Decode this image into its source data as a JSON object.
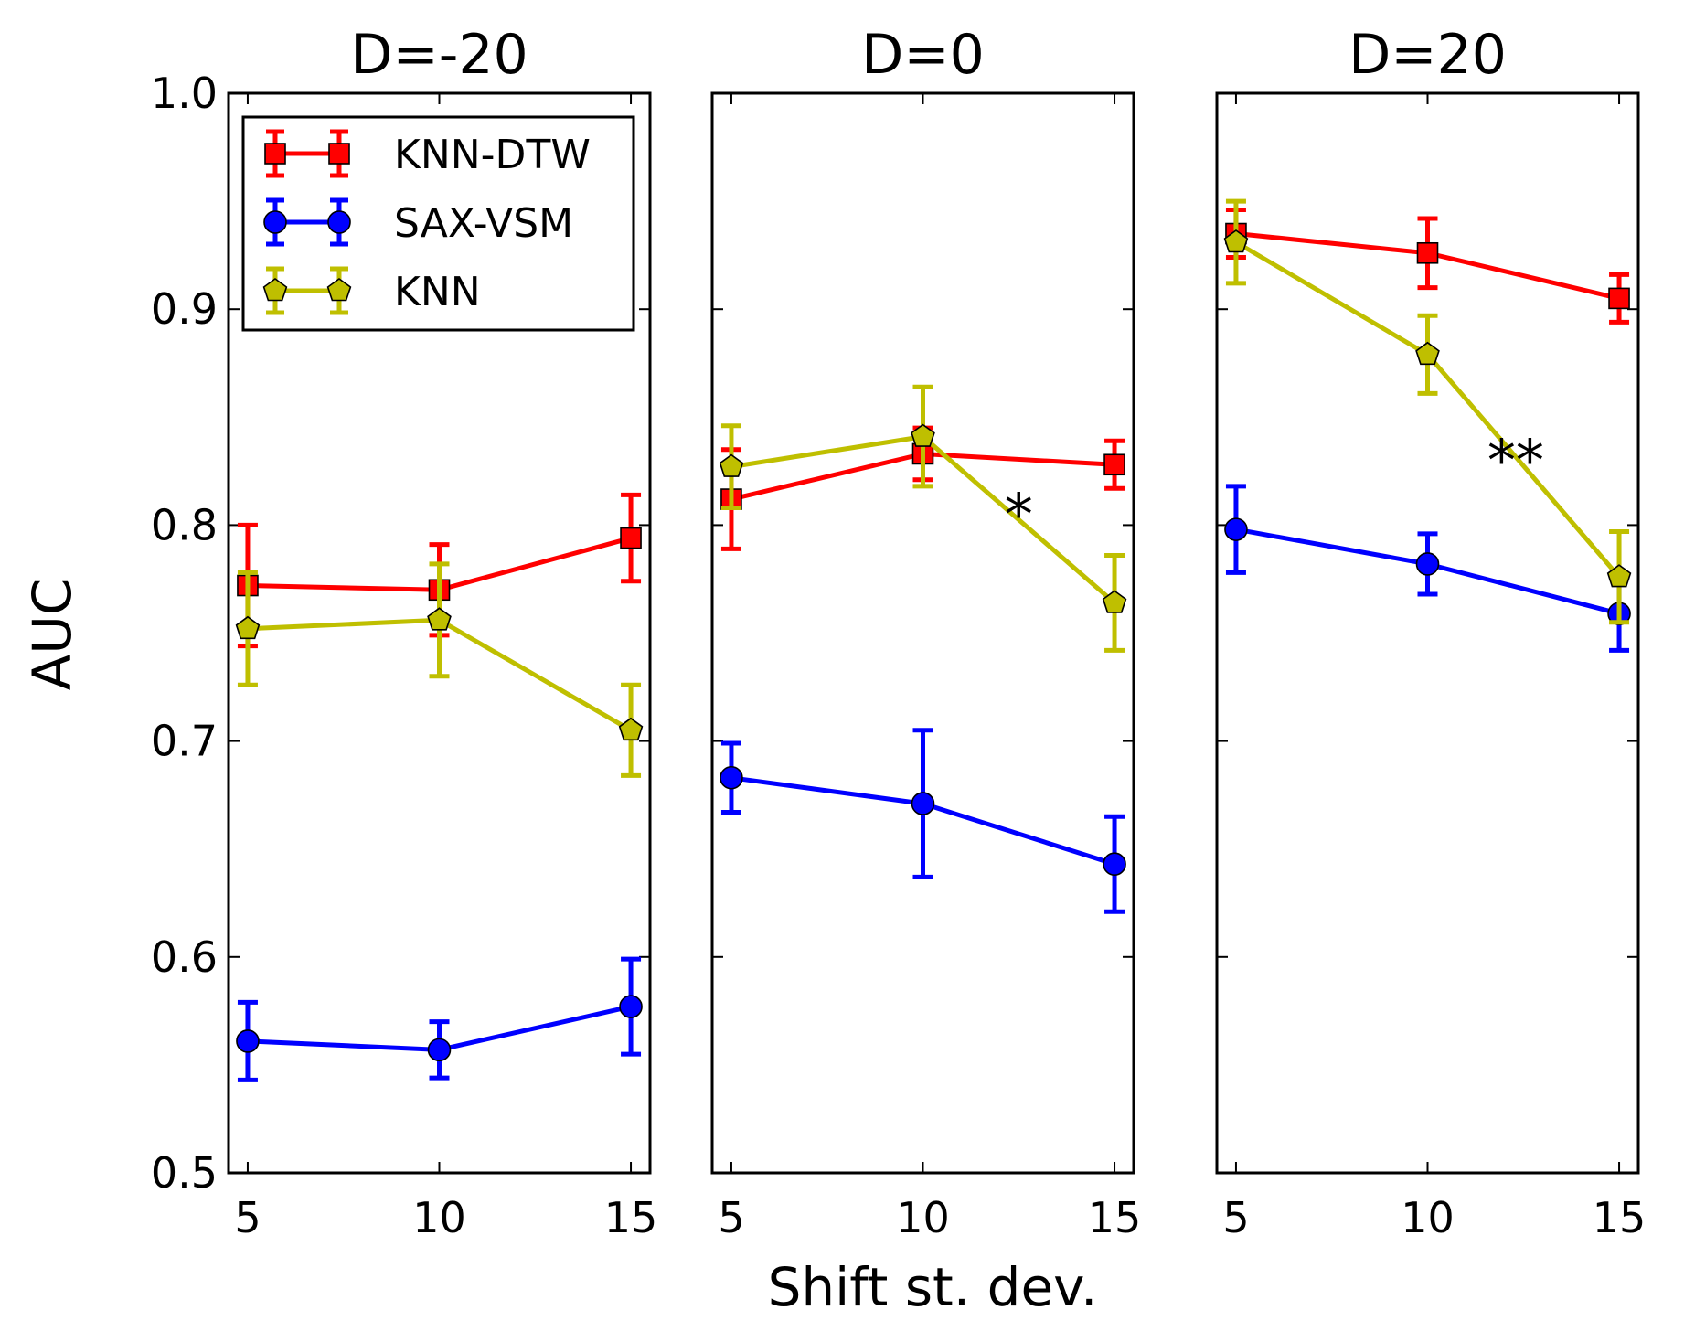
{
  "chart_data": {
    "type": "line",
    "figure": {
      "xlabel": "Shift st. dev.",
      "ylabel": "AUC",
      "ylim": [
        0.5,
        1.0
      ],
      "yticks": [
        "0.5",
        "0.6",
        "0.7",
        "0.8",
        "0.9",
        "1.0"
      ],
      "x": [
        5,
        10,
        15
      ],
      "xticks": [
        "5",
        "10",
        "15"
      ],
      "xlim": [
        4.5,
        15.5
      ],
      "legend_location": "upper-left of first panel"
    },
    "series_styles": [
      {
        "name": "KNN-DTW",
        "color": "#ff0000",
        "marker": "square"
      },
      {
        "name": "SAX-VSM",
        "color": "#0000ff",
        "marker": "circle"
      },
      {
        "name": "KNN",
        "color": "#bfbf00",
        "marker": "pentagon"
      }
    ],
    "panels": [
      {
        "title": "D=-20",
        "series": [
          {
            "name": "KNN-DTW",
            "values": [
              0.772,
              0.77,
              0.794
            ],
            "errors": [
              0.028,
              0.021,
              0.02
            ]
          },
          {
            "name": "SAX-VSM",
            "values": [
              0.561,
              0.557,
              0.577
            ],
            "errors": [
              0.018,
              0.013,
              0.022
            ]
          },
          {
            "name": "KNN",
            "values": [
              0.752,
              0.756,
              0.705
            ],
            "errors": [
              0.026,
              0.026,
              0.021
            ]
          }
        ],
        "annotation": null
      },
      {
        "title": "D=0",
        "series": [
          {
            "name": "KNN-DTW",
            "values": [
              0.812,
              0.833,
              0.828
            ],
            "errors": [
              0.023,
              0.012,
              0.011
            ]
          },
          {
            "name": "SAX-VSM",
            "values": [
              0.683,
              0.671,
              0.643
            ],
            "errors": [
              0.016,
              0.034,
              0.022
            ]
          },
          {
            "name": "KNN",
            "values": [
              0.827,
              0.841,
              0.764
            ],
            "errors": [
              0.019,
              0.023,
              0.022
            ]
          }
        ],
        "annotation": {
          "text": "*",
          "x": 12.5,
          "y": 0.805
        }
      },
      {
        "title": "D=20",
        "series": [
          {
            "name": "KNN-DTW",
            "values": [
              0.935,
              0.926,
              0.905
            ],
            "errors": [
              0.011,
              0.016,
              0.011
            ]
          },
          {
            "name": "SAX-VSM",
            "values": [
              0.798,
              0.782,
              0.759
            ],
            "errors": [
              0.02,
              0.014,
              0.017
            ]
          },
          {
            "name": "KNN",
            "values": [
              0.931,
              0.879,
              0.776
            ],
            "errors": [
              0.019,
              0.018,
              0.021
            ]
          }
        ],
        "annotation": {
          "text": "**",
          "x": 12.3,
          "y": 0.83
        }
      }
    ]
  }
}
